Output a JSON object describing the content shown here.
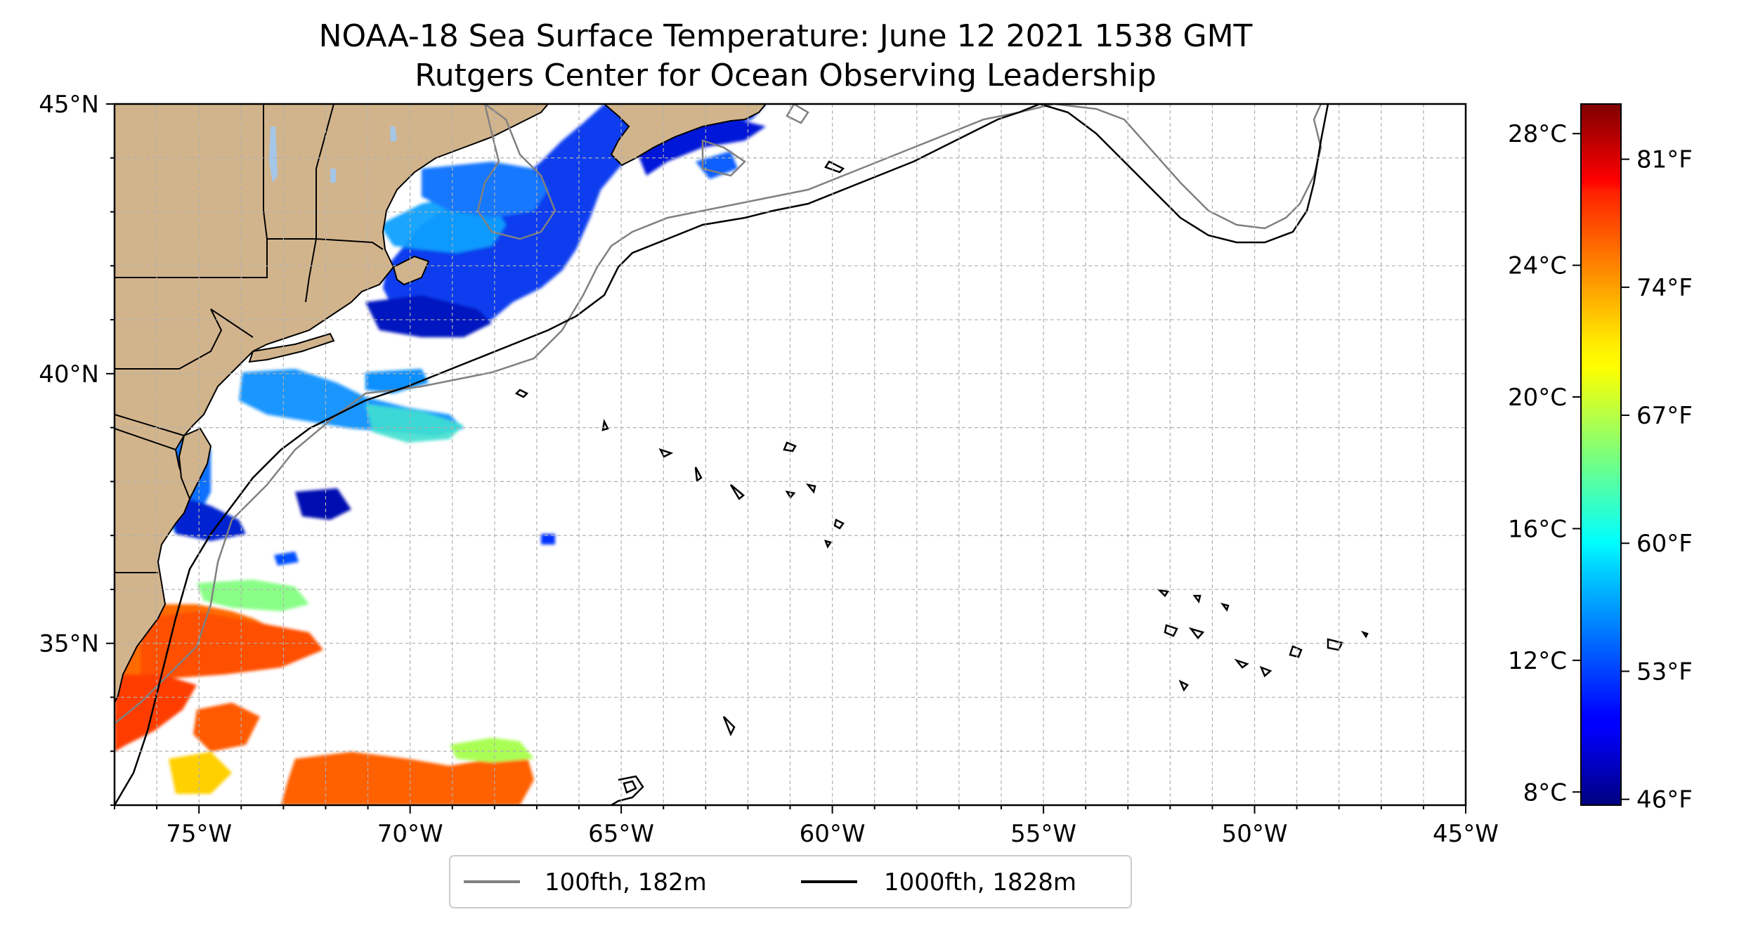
{
  "title": {
    "line1": "NOAA-18 Sea Surface Temperature: June 12 2021 1538 GMT",
    "line2": "Rutgers Center for Ocean Observing Leadership"
  },
  "map": {
    "lon_range": [
      -77,
      -45
    ],
    "lat_range": [
      32,
      45
    ],
    "x_ticks": [
      {
        "lon": -75,
        "label": "75°W"
      },
      {
        "lon": -70,
        "label": "70°W"
      },
      {
        "lon": -65,
        "label": "65°W"
      },
      {
        "lon": -60,
        "label": "60°W"
      },
      {
        "lon": -55,
        "label": "55°W"
      },
      {
        "lon": -50,
        "label": "50°W"
      },
      {
        "lon": -45,
        "label": "45°W"
      }
    ],
    "y_ticks": [
      {
        "lat": 45,
        "label": "45°N"
      },
      {
        "lat": 40,
        "label": "40°N"
      },
      {
        "lat": 35,
        "label": "35°N"
      }
    ],
    "grid": true,
    "colors": {
      "land": "#d2b48c",
      "ocean": "#ffffff",
      "grid": "#b0b0b0",
      "isobath_100fth": "#808080",
      "isobath_1000fth": "#000000"
    }
  },
  "legend": {
    "placement": "bottom-center",
    "items": [
      {
        "label": "100fth, 182m",
        "color": "#808080"
      },
      {
        "label": "1000fth, 1828m",
        "color": "#000000"
      }
    ]
  },
  "colorbar": {
    "colormap": "jet",
    "range_c": [
      7.6,
      28.9
    ],
    "celsius_ticks": [
      {
        "value": 28,
        "label": "28°C"
      },
      {
        "value": 24,
        "label": "24°C"
      },
      {
        "value": 20,
        "label": "20°C"
      },
      {
        "value": 16,
        "label": "16°C"
      },
      {
        "value": 12,
        "label": "12°C"
      },
      {
        "value": 8,
        "label": "8°C"
      }
    ],
    "fahrenheit_ticks": [
      {
        "value": 81,
        "label": "81°F"
      },
      {
        "value": 74,
        "label": "74°F"
      },
      {
        "value": 67,
        "label": "67°F"
      },
      {
        "value": 60,
        "label": "60°F"
      },
      {
        "value": 53,
        "label": "53°F"
      },
      {
        "value": 46,
        "label": "46°F"
      }
    ]
  }
}
